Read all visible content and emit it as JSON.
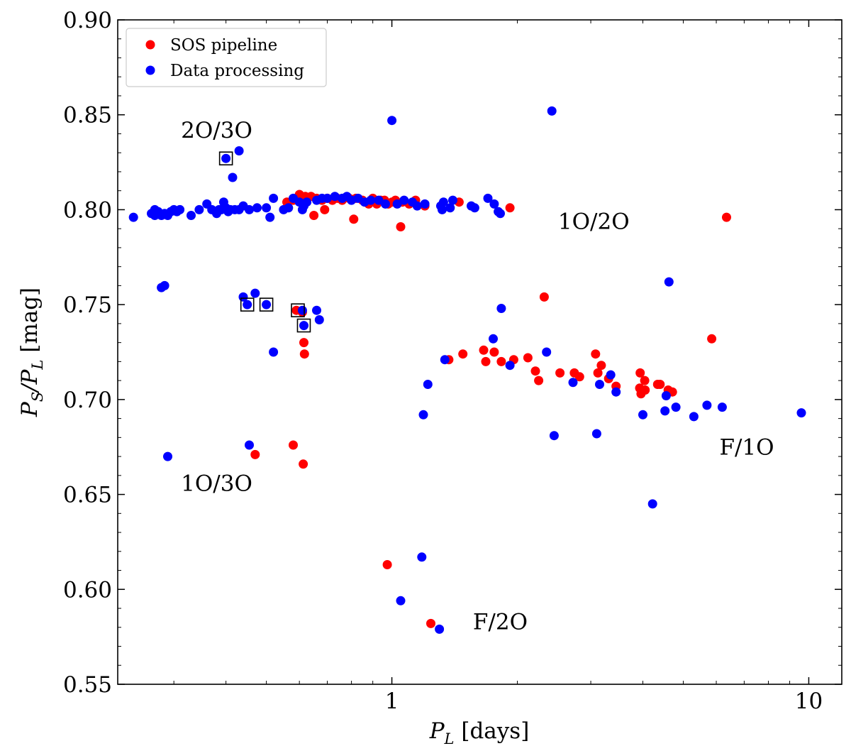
{
  "chart_data": {
    "type": "scatter",
    "x_scale": "log",
    "xlim": [
      0.22,
      12
    ],
    "ylim": [
      0.55,
      0.9
    ],
    "xlabel": {
      "main": "P",
      "sub": "L",
      "rest": " [days]"
    },
    "ylabel": {
      "p1": "P",
      "s1": "S",
      "mid": "/P",
      "s2": "L",
      "rest": " [mag]"
    },
    "x_ticks": [
      {
        "value": 1,
        "label": "1"
      },
      {
        "value": 10,
        "label": "10"
      }
    ],
    "y_ticks": [
      {
        "value": 0.55,
        "label": "0.55"
      },
      {
        "value": 0.6,
        "label": "0.60"
      },
      {
        "value": 0.65,
        "label": "0.65"
      },
      {
        "value": 0.7,
        "label": "0.70"
      },
      {
        "value": 0.75,
        "label": "0.75"
      },
      {
        "value": 0.8,
        "label": "0.80"
      },
      {
        "value": 0.85,
        "label": "0.85"
      },
      {
        "value": 0.9,
        "label": "0.90"
      }
    ],
    "legend": {
      "placement": "top-left"
    },
    "annotations": [
      {
        "text": "2O/3O",
        "x": 0.38,
        "y": 0.842
      },
      {
        "text": "1O/2O",
        "x": 3.05,
        "y": 0.794
      },
      {
        "text": "1O/3O",
        "x": 0.38,
        "y": 0.656
      },
      {
        "text": "F/1O",
        "x": 7.1,
        "y": 0.675
      },
      {
        "text": "F/2O",
        "x": 1.82,
        "y": 0.583
      }
    ],
    "boxed_points": [
      [
        0.4,
        0.827
      ],
      [
        0.45,
        0.75
      ],
      [
        0.5,
        0.75
      ],
      [
        0.595,
        0.747
      ],
      [
        0.615,
        0.739
      ]
    ],
    "series": [
      {
        "name": "SOS pipeline",
        "color": "#ff0000",
        "points": [
          [
            0.56,
            0.804
          ],
          [
            0.58,
            0.805
          ],
          [
            0.59,
            0.806
          ],
          [
            0.6,
            0.808
          ],
          [
            0.62,
            0.807
          ],
          [
            0.64,
            0.807
          ],
          [
            0.66,
            0.806
          ],
          [
            0.68,
            0.805
          ],
          [
            0.7,
            0.806
          ],
          [
            0.72,
            0.805
          ],
          [
            0.74,
            0.806
          ],
          [
            0.76,
            0.805
          ],
          [
            0.79,
            0.806
          ],
          [
            0.82,
            0.806
          ],
          [
            0.85,
            0.805
          ],
          [
            0.88,
            0.803
          ],
          [
            0.9,
            0.806
          ],
          [
            0.92,
            0.803
          ],
          [
            0.94,
            0.805
          ],
          [
            0.96,
            0.805
          ],
          [
            0.98,
            0.803
          ],
          [
            1.0,
            0.804
          ],
          [
            1.02,
            0.805
          ],
          [
            1.06,
            0.804
          ],
          [
            1.1,
            0.803
          ],
          [
            1.14,
            0.805
          ],
          [
            1.2,
            0.802
          ],
          [
            1.45,
            0.804
          ],
          [
            0.65,
            0.797
          ],
          [
            0.69,
            0.8
          ],
          [
            0.81,
            0.795
          ],
          [
            1.05,
            0.791
          ],
          [
            1.92,
            0.801
          ],
          [
            0.59,
            0.747
          ],
          [
            0.61,
            0.746
          ],
          [
            0.615,
            0.73
          ],
          [
            0.617,
            0.724
          ],
          [
            0.47,
            0.671
          ],
          [
            0.58,
            0.676
          ],
          [
            0.613,
            0.666
          ],
          [
            0.975,
            0.613
          ],
          [
            1.24,
            0.582
          ],
          [
            1.37,
            0.721
          ],
          [
            1.48,
            0.724
          ],
          [
            1.66,
            0.726
          ],
          [
            1.68,
            0.72
          ],
          [
            1.76,
            0.725
          ],
          [
            1.83,
            0.72
          ],
          [
            1.96,
            0.721
          ],
          [
            2.12,
            0.722
          ],
          [
            2.21,
            0.715
          ],
          [
            2.25,
            0.71
          ],
          [
            2.32,
            0.754
          ],
          [
            2.53,
            0.714
          ],
          [
            2.74,
            0.714
          ],
          [
            2.82,
            0.712
          ],
          [
            3.08,
            0.724
          ],
          [
            3.12,
            0.714
          ],
          [
            3.18,
            0.718
          ],
          [
            3.31,
            0.711
          ],
          [
            3.45,
            0.707
          ],
          [
            3.94,
            0.714
          ],
          [
            3.93,
            0.706
          ],
          [
            3.96,
            0.703
          ],
          [
            4.04,
            0.71
          ],
          [
            4.05,
            0.705
          ],
          [
            4.34,
            0.708
          ],
          [
            4.4,
            0.708
          ],
          [
            4.6,
            0.705
          ],
          [
            4.71,
            0.704
          ],
          [
            5.85,
            0.732
          ],
          [
            6.35,
            0.796
          ]
        ]
      },
      {
        "name": "Data processing",
        "color": "#0000ff",
        "points": [
          [
            0.24,
            0.796
          ],
          [
            0.265,
            0.798
          ],
          [
            0.27,
            0.797
          ],
          [
            0.27,
            0.8
          ],
          [
            0.275,
            0.799
          ],
          [
            0.28,
            0.797
          ],
          [
            0.285,
            0.798
          ],
          [
            0.29,
            0.797
          ],
          [
            0.295,
            0.799
          ],
          [
            0.3,
            0.8
          ],
          [
            0.305,
            0.799
          ],
          [
            0.31,
            0.8
          ],
          [
            0.33,
            0.797
          ],
          [
            0.345,
            0.8
          ],
          [
            0.36,
            0.803
          ],
          [
            0.37,
            0.8
          ],
          [
            0.38,
            0.798
          ],
          [
            0.385,
            0.8
          ],
          [
            0.39,
            0.8
          ],
          [
            0.395,
            0.804
          ],
          [
            0.4,
            0.801
          ],
          [
            0.405,
            0.799
          ],
          [
            0.41,
            0.8
          ],
          [
            0.42,
            0.8
          ],
          [
            0.43,
            0.8
          ],
          [
            0.44,
            0.802
          ],
          [
            0.455,
            0.8
          ],
          [
            0.475,
            0.801
          ],
          [
            0.5,
            0.801
          ],
          [
            0.51,
            0.796
          ],
          [
            0.52,
            0.806
          ],
          [
            0.55,
            0.8
          ],
          [
            0.565,
            0.801
          ],
          [
            0.58,
            0.806
          ],
          [
            0.6,
            0.804
          ],
          [
            0.615,
            0.802
          ],
          [
            0.625,
            0.804
          ],
          [
            0.66,
            0.805
          ],
          [
            0.68,
            0.806
          ],
          [
            0.7,
            0.806
          ],
          [
            0.73,
            0.807
          ],
          [
            0.76,
            0.806
          ],
          [
            0.78,
            0.807
          ],
          [
            0.8,
            0.805
          ],
          [
            0.83,
            0.806
          ],
          [
            0.86,
            0.804
          ],
          [
            0.89,
            0.805
          ],
          [
            0.93,
            0.805
          ],
          [
            0.965,
            0.803
          ],
          [
            1.03,
            0.803
          ],
          [
            1.07,
            0.805
          ],
          [
            1.12,
            0.804
          ],
          [
            1.15,
            0.802
          ],
          [
            1.2,
            0.803
          ],
          [
            1.31,
            0.802
          ],
          [
            1.33,
            0.804
          ],
          [
            1.38,
            0.801
          ],
          [
            1.4,
            0.805
          ],
          [
            1.55,
            0.802
          ],
          [
            1.58,
            0.801
          ],
          [
            1.7,
            0.806
          ],
          [
            1.76,
            0.803
          ],
          [
            1.8,
            0.799
          ],
          [
            1.82,
            0.798
          ],
          [
            0.61,
            0.8
          ],
          [
            1.32,
            0.8
          ],
          [
            0.4,
            0.827
          ],
          [
            0.43,
            0.831
          ],
          [
            0.415,
            0.817
          ],
          [
            1.0,
            0.847
          ],
          [
            2.42,
            0.852
          ],
          [
            0.28,
            0.759
          ],
          [
            0.285,
            0.76
          ],
          [
            0.44,
            0.754
          ],
          [
            0.45,
            0.75
          ],
          [
            0.47,
            0.756
          ],
          [
            0.5,
            0.75
          ],
          [
            0.52,
            0.725
          ],
          [
            0.61,
            0.747
          ],
          [
            0.615,
            0.739
          ],
          [
            0.66,
            0.747
          ],
          [
            0.67,
            0.742
          ],
          [
            0.29,
            0.67
          ],
          [
            0.455,
            0.676
          ],
          [
            1.34,
            0.721
          ],
          [
            1.22,
            0.708
          ],
          [
            1.19,
            0.692
          ],
          [
            1.18,
            0.617
          ],
          [
            1.05,
            0.594
          ],
          [
            1.3,
            0.579
          ],
          [
            1.75,
            0.732
          ],
          [
            1.83,
            0.748
          ],
          [
            1.92,
            0.718
          ],
          [
            2.35,
            0.725
          ],
          [
            2.45,
            0.681
          ],
          [
            2.72,
            0.709
          ],
          [
            3.1,
            0.682
          ],
          [
            3.15,
            0.708
          ],
          [
            3.35,
            0.713
          ],
          [
            3.45,
            0.704
          ],
          [
            4.0,
            0.692
          ],
          [
            4.22,
            0.645
          ],
          [
            4.52,
            0.694
          ],
          [
            4.55,
            0.702
          ],
          [
            4.62,
            0.762
          ],
          [
            4.8,
            0.696
          ],
          [
            5.3,
            0.691
          ],
          [
            5.7,
            0.697
          ],
          [
            6.2,
            0.696
          ],
          [
            9.6,
            0.693
          ]
        ]
      }
    ]
  }
}
